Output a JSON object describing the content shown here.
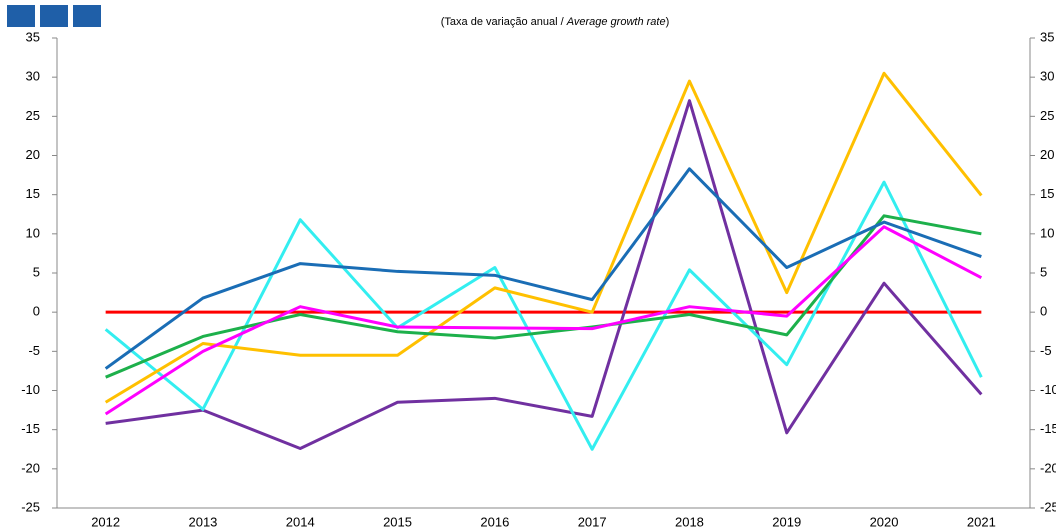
{
  "chart_data": {
    "type": "line",
    "subtitle": [
      "(Taxa de variação anual / ",
      "Average growth rate",
      ")"
    ],
    "categories": [
      "2012",
      "2013",
      "2014",
      "2015",
      "2016",
      "2017",
      "2018",
      "2019",
      "2020",
      "2021"
    ],
    "series": [
      {
        "color": "#ff0000",
        "values": [
          0,
          0,
          0,
          0,
          0,
          0,
          0,
          0,
          0,
          0
        ]
      },
      {
        "color": "#7030a0",
        "values": [
          -14.2,
          -12.5,
          -17.4,
          -11.5,
          -11.0,
          -13.3,
          27.0,
          -15.4,
          3.7,
          -10.5
        ]
      },
      {
        "color": "#33eef0",
        "values": [
          -2.2,
          -12.4,
          11.8,
          -2.0,
          5.7,
          -17.5,
          5.4,
          -6.7,
          16.6,
          -8.3
        ]
      },
      {
        "color": "#ffc000",
        "values": [
          -11.5,
          -4.0,
          -5.5,
          -5.5,
          3.1,
          0,
          29.5,
          2.5,
          30.5,
          14.9
        ]
      },
      {
        "color": "#1db04b",
        "values": [
          -8.3,
          -3.1,
          -0.3,
          -2.5,
          -3.3,
          -1.9,
          -0.3,
          -2.9,
          12.3,
          10.0
        ]
      },
      {
        "color": "#ff00ff",
        "values": [
          -13.0,
          -5.0,
          0.7,
          -1.9,
          -2.0,
          -2.1,
          0.7,
          -0.5,
          10.9,
          4.4
        ]
      },
      {
        "color": "#1a6db5",
        "values": [
          -7.2,
          1.8,
          6.2,
          5.2,
          4.7,
          1.6,
          18.3,
          5.7,
          11.5,
          7.1
        ]
      }
    ],
    "ylim": [
      -25,
      35
    ],
    "yticks": [
      -25,
      -20,
      -15,
      -10,
      -5,
      0,
      5,
      10,
      15,
      20,
      25,
      30,
      35
    ],
    "mirror_y_axis": true,
    "grid": false
  }
}
